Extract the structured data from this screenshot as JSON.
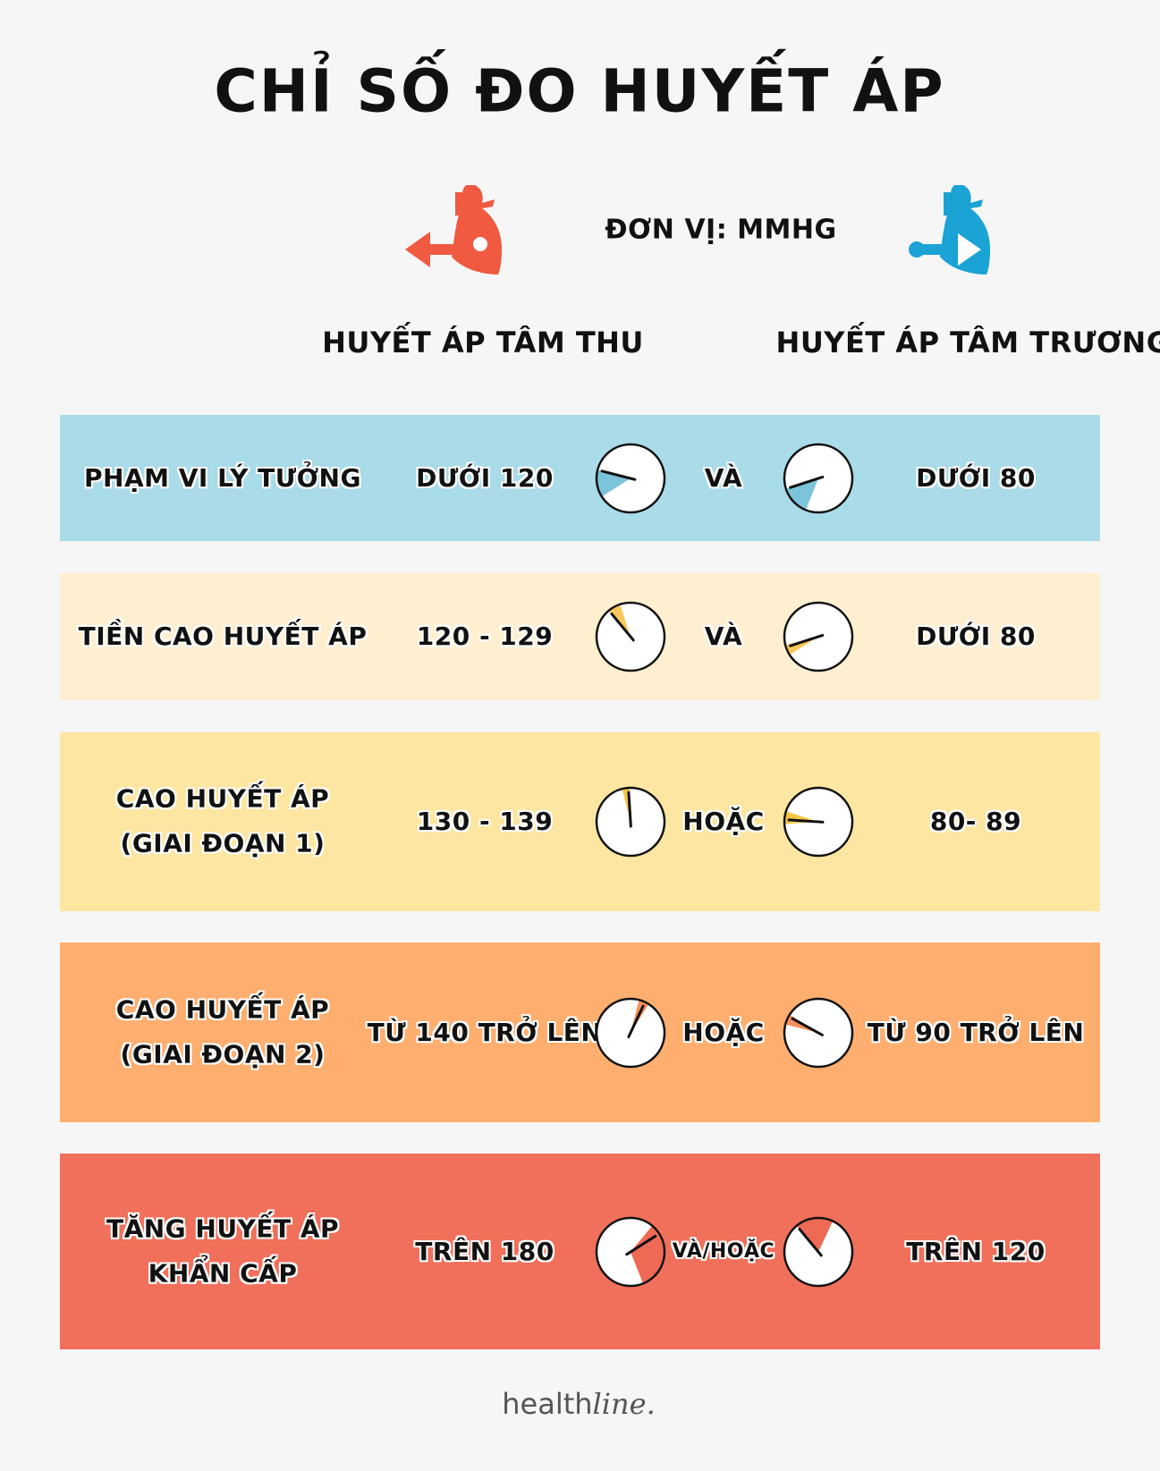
{
  "title": "CHỈ SỐ ĐO HUYẾT ÁP",
  "unit_label": "ĐƠN VỊ: MMHG",
  "icons": {
    "left": "heart-arrow-out-icon",
    "right": "heart-arrow-in-icon",
    "left_color": "#ef5a40",
    "right_color": "#1aa3d4"
  },
  "columns": {
    "systolic": "HUYẾT ÁP TÂM THU",
    "diastolic": "HUYẾT ÁP TÂM TRƯƠNG"
  },
  "rows": [
    {
      "category": [
        "PHẠM VI LÝ TƯỞNG"
      ],
      "systolic": "DƯỚI 120",
      "connector": "VÀ",
      "diastolic": "DƯỚI 80",
      "color": "#a9dbe8",
      "accent": "#7cc4da",
      "systolic_gauge": {
        "fill_from": 0.66,
        "fill_to": 0.79,
        "needle": 0.79
      },
      "diastolic_gauge": {
        "fill_from": 0.56,
        "fill_to": 0.7,
        "needle": 0.7
      }
    },
    {
      "category": [
        "TIỀN CAO HUYẾT ÁP"
      ],
      "systolic": "120 - 129",
      "connector": "VÀ",
      "diastolic": "DƯỚI 80",
      "color": "#fdefd0",
      "accent": "#f8c95a",
      "systolic_gauge": {
        "fill_from": 0.89,
        "fill_to": 0.95,
        "needle": 0.89
      },
      "diastolic_gauge": {
        "fill_from": 0.66,
        "fill_to": 0.71,
        "needle": 0.7
      }
    },
    {
      "category": [
        "CAO HUYẾT ÁP",
        "(GIAI ĐOẠN 1)"
      ],
      "systolic": "130 - 139",
      "connector": "HOẶC",
      "diastolic": "80- 89",
      "color": "#fce6a1",
      "accent": "#f6c544",
      "systolic_gauge": {
        "fill_from": 0.96,
        "fill_to": 0.995,
        "needle": 0.99
      },
      "diastolic_gauge": {
        "fill_from": 0.74,
        "fill_to": 0.8,
        "needle": 0.76
      }
    },
    {
      "category": [
        "CAO HUYẾT ÁP",
        "(GIAI ĐOẠN 2)"
      ],
      "systolic": "TỪ 140 TRỞ LÊN",
      "connector": "HOẶC",
      "diastolic": "TỪ 90 TRỞ LÊN",
      "color": "#feae6f",
      "accent": "#f5915a",
      "systolic_gauge": {
        "fill_from": 0.04,
        "fill_to": 0.09,
        "needle": 0.07
      },
      "diastolic_gauge": {
        "fill_from": 0.79,
        "fill_to": 0.84,
        "needle": 0.83
      }
    },
    {
      "category": [
        "TĂNG HUYẾT ÁP",
        "KHẨN CẤP"
      ],
      "systolic": "TRÊN 180",
      "connector": "VÀ/HOẶC",
      "diastolic": "TRÊN 120",
      "color": "#f0705b",
      "accent": "#ee6a55",
      "systolic_gauge": {
        "fill_from": 0.11,
        "fill_to": 0.44,
        "needle": 0.16
      },
      "diastolic_gauge": {
        "fill_from": 0.89,
        "fill_to": 1.07,
        "needle": 0.89
      }
    }
  ],
  "logo": {
    "text_a": "health",
    "text_b": "line."
  }
}
